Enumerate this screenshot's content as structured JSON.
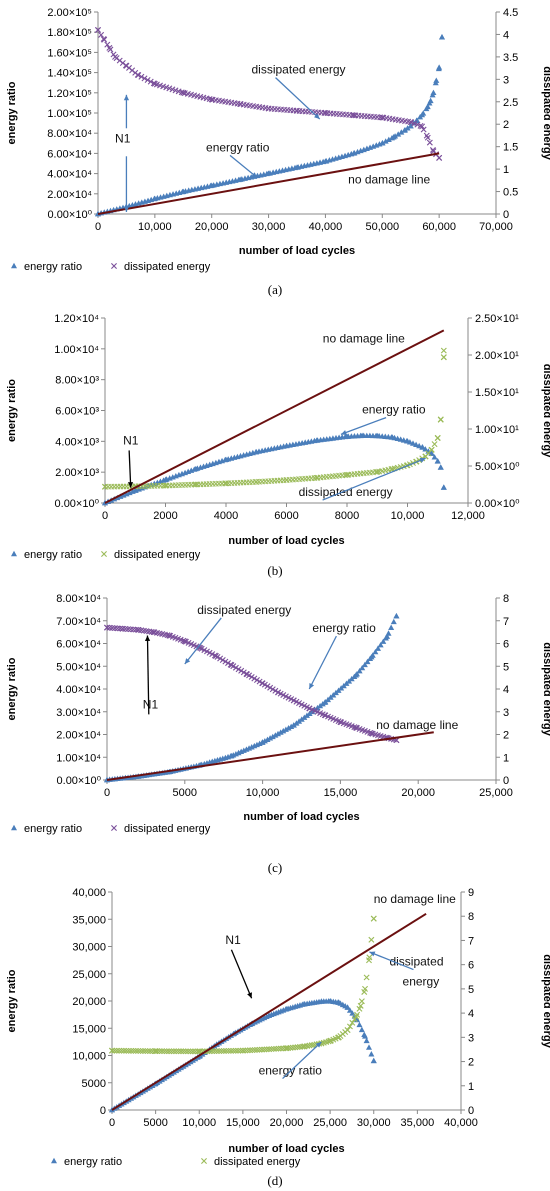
{
  "chart_data": [
    {
      "id": "a",
      "caption": "(a)",
      "type": "scatter",
      "xlabel": "number of load cycles",
      "ylabel": "energy ratio",
      "y2label": "dissipated energy",
      "xlim": [
        0,
        70000
      ],
      "ylim": [
        0,
        200000
      ],
      "y2lim": [
        0,
        4.5
      ],
      "xticks": [
        0,
        10000,
        20000,
        30000,
        40000,
        50000,
        60000,
        70000
      ],
      "xtick_labels": [
        "0",
        "10,000",
        "20,000",
        "30,000",
        "40,000",
        "50,000",
        "60,000",
        "70,000"
      ],
      "yticks": [
        0,
        20000,
        40000,
        60000,
        80000,
        100000,
        120000,
        140000,
        160000,
        180000,
        200000
      ],
      "ytick_labels": [
        "0.00×10⁰",
        "2.00×10⁴",
        "4.00×10⁴",
        "6.00×10⁴",
        "8.00×10⁴",
        "1.00×10⁵",
        "1.20×10⁵",
        "1.40×10⁵",
        "1.60×10⁵",
        "1.80×10⁵",
        "2.00×10⁵"
      ],
      "y2ticks": [
        0,
        0.5,
        1,
        1.5,
        2,
        2.5,
        3,
        3.5,
        4,
        4.5
      ],
      "y2tick_labels": [
        "0",
        "0.5",
        "1",
        "1.5",
        "2",
        "2.5",
        "3",
        "3.5",
        "4",
        "4.5"
      ],
      "series": [
        {
          "name": "energy ratio",
          "marker": "triangle",
          "color": "#4a7ebb",
          "axis": "y",
          "x": [
            0,
            5000,
            10000,
            15000,
            20000,
            25000,
            30000,
            35000,
            40000,
            45000,
            50000,
            52000,
            54000,
            55000,
            56000,
            57000,
            58000,
            58500,
            59000,
            59500,
            60000,
            60500
          ],
          "y": [
            0,
            7000,
            15000,
            22000,
            28000,
            34000,
            40000,
            46000,
            52000,
            60000,
            70000,
            76000,
            83000,
            87000,
            92000,
            98000,
            106000,
            112000,
            120000,
            132000,
            145000,
            175000
          ]
        },
        {
          "name": "dissipated energy",
          "marker": "x",
          "color": "#7a4f9a",
          "axis": "y2",
          "x": [
            0,
            1000,
            2000,
            3000,
            5000,
            7000,
            10000,
            15000,
            20000,
            25000,
            30000,
            35000,
            40000,
            45000,
            50000,
            55000,
            57000,
            58000,
            59000,
            60000
          ],
          "y": [
            4.1,
            3.9,
            3.7,
            3.5,
            3.3,
            3.1,
            2.9,
            2.7,
            2.55,
            2.45,
            2.35,
            2.3,
            2.25,
            2.2,
            2.15,
            2.05,
            1.95,
            1.7,
            1.4,
            1.25
          ]
        },
        {
          "name": "no damage line",
          "marker": "line",
          "color": "#6b1010",
          "axis": "y",
          "x": [
            0,
            60000
          ],
          "y": [
            0,
            60000
          ]
        }
      ],
      "annotations": [
        {
          "text": "dissipated energy",
          "x": 27000,
          "y": 139000,
          "arrow_to": [
            39000,
            94000
          ]
        },
        {
          "text": "energy ratio",
          "x": 19000,
          "y": 62000,
          "arrow_to": [
            28000,
            36000
          ]
        },
        {
          "text": "no damage line",
          "x": 44000,
          "y": 30000
        },
        {
          "text": "N1",
          "x": 3000,
          "y": 71000,
          "double_arrow": [
            5000,
            2000,
            5000,
            118000
          ]
        }
      ]
    },
    {
      "id": "b",
      "caption": "(b)",
      "type": "scatter",
      "xlabel": "number of load cycles",
      "ylabel": "energy ratio",
      "y2label": "dissipated energy",
      "xlim": [
        0,
        12000
      ],
      "ylim": [
        0,
        12000
      ],
      "y2lim": [
        0,
        25
      ],
      "xticks": [
        0,
        2000,
        4000,
        6000,
        8000,
        10000,
        12000
      ],
      "xtick_labels": [
        "0",
        "2000",
        "4000",
        "6000",
        "8000",
        "10,000",
        "12,000"
      ],
      "yticks": [
        0,
        2000,
        4000,
        6000,
        8000,
        10000,
        12000
      ],
      "ytick_labels": [
        "0.00×10⁰",
        "2.00×10³",
        "4.00×10³",
        "6.00×10³",
        "8.00×10³",
        "1.00×10⁴",
        "1.20×10⁴"
      ],
      "y2ticks": [
        0,
        5,
        10,
        15,
        20,
        25
      ],
      "y2tick_labels": [
        "0.00×10⁰",
        "5.00×10⁰",
        "1.00×10¹",
        "1.50×10¹",
        "2.00×10¹",
        "2.50×10¹"
      ],
      "series": [
        {
          "name": "energy ratio",
          "marker": "triangle",
          "color": "#4a7ebb",
          "axis": "y",
          "x": [
            0,
            1000,
            2000,
            3000,
            4000,
            5000,
            6000,
            7000,
            8000,
            8500,
            9000,
            9500,
            10000,
            10500,
            10800,
            11000,
            11100,
            11200
          ],
          "y": [
            0,
            800,
            1500,
            2200,
            2800,
            3300,
            3700,
            4050,
            4300,
            4360,
            4350,
            4250,
            4000,
            3600,
            3200,
            2700,
            2300,
            1000
          ]
        },
        {
          "name": "dissipated energy",
          "marker": "x",
          "color": "#9bbb59",
          "axis": "y2",
          "x": [
            0,
            1000,
            2000,
            3000,
            4000,
            5000,
            6000,
            7000,
            8000,
            9000,
            9500,
            10000,
            10300,
            10600,
            10800,
            11000,
            11100,
            11200,
            11200
          ],
          "y": [
            2.2,
            2.25,
            2.35,
            2.5,
            2.65,
            2.85,
            3.1,
            3.4,
            3.8,
            4.2,
            4.6,
            5.1,
            5.6,
            6.3,
            7.2,
            8.8,
            11.3,
            19.7,
            20.6
          ]
        },
        {
          "name": "no damage line",
          "marker": "line",
          "color": "#6b1010",
          "axis": "y",
          "x": [
            0,
            11200
          ],
          "y": [
            0,
            11200
          ]
        }
      ],
      "annotations": [
        {
          "text": "no damage line",
          "x": 7200,
          "y": 10400
        },
        {
          "text": "energy ratio",
          "x": 8500,
          "y": 5800,
          "arrow_to": [
            7800,
            4450
          ]
        },
        {
          "text": "dissipated energy",
          "x": 6400,
          "y": 450,
          "arrow_to": [
            10600,
            2900
          ]
        },
        {
          "text": "N1",
          "x": 600,
          "y": 3800,
          "arrow_to": [
            850,
            1000
          ]
        }
      ]
    },
    {
      "id": "c",
      "caption": "(c)",
      "type": "scatter",
      "xlabel": "number of load cycles",
      "ylabel": "energy ratio",
      "y2label": "dissipated energy",
      "xlim": [
        0,
        25000
      ],
      "ylim": [
        0,
        80000
      ],
      "y2lim": [
        0,
        8
      ],
      "xticks": [
        0,
        5000,
        10000,
        15000,
        20000,
        25000
      ],
      "xtick_labels": [
        "0",
        "5000",
        "10,000",
        "15,000",
        "20,000",
        "25,000"
      ],
      "yticks": [
        0,
        10000,
        20000,
        30000,
        40000,
        50000,
        60000,
        70000,
        80000
      ],
      "ytick_labels": [
        "0.00×10⁰",
        "1.00×10⁴",
        "2.00×10⁴",
        "3.00×10⁴",
        "4.00×10⁴",
        "5.00×10⁴",
        "6.00×10⁴",
        "7.00×10⁴",
        "8.00×10⁴"
      ],
      "y2ticks": [
        0,
        1,
        2,
        3,
        4,
        5,
        6,
        7,
        8
      ],
      "y2tick_labels": [
        "0",
        "1",
        "2",
        "3",
        "4",
        "5",
        "6",
        "7",
        "8"
      ],
      "series": [
        {
          "name": "energy ratio",
          "marker": "triangle",
          "color": "#4a7ebb",
          "axis": "y",
          "x": [
            0,
            2000,
            4000,
            6000,
            8000,
            10000,
            12000,
            14000,
            16000,
            17000,
            18000,
            18600
          ],
          "y": [
            0,
            1500,
            3500,
            6500,
            10500,
            16500,
            24000,
            34000,
            46000,
            54000,
            63000,
            72000
          ]
        },
        {
          "name": "dissipated energy",
          "marker": "x",
          "color": "#7a4f9a",
          "axis": "y2",
          "x": [
            0,
            1000,
            2000,
            3000,
            4000,
            5000,
            6000,
            7000,
            8000,
            9000,
            10000,
            11000,
            12000,
            13000,
            14000,
            15000,
            16000,
            17000,
            18000,
            18600
          ],
          "y": [
            6.7,
            6.65,
            6.6,
            6.5,
            6.35,
            6.1,
            5.8,
            5.45,
            5.05,
            4.65,
            4.25,
            3.85,
            3.5,
            3.15,
            2.85,
            2.55,
            2.3,
            2.05,
            1.85,
            1.75
          ]
        },
        {
          "name": "no damage line",
          "marker": "line",
          "color": "#6b1010",
          "axis": "y",
          "x": [
            0,
            21000
          ],
          "y": [
            0,
            21000
          ]
        }
      ],
      "annotations": [
        {
          "text": "dissipated energy",
          "x": 5800,
          "y": 73000,
          "arrow_to": [
            5000,
            51000
          ]
        },
        {
          "text": "energy ratio",
          "x": 13200,
          "y": 65000,
          "arrow_to": [
            13000,
            40000
          ]
        },
        {
          "text": "no damage line",
          "x": 17300,
          "y": 22500
        },
        {
          "text": "N1",
          "x": 2300,
          "y": 31500,
          "arrow_to": [
            2600,
            63500
          ]
        }
      ]
    },
    {
      "id": "d",
      "caption": "(d)",
      "type": "scatter",
      "xlabel": "number of load cycles",
      "ylabel": "energy ratio",
      "y2label": "dissipated energy",
      "xlim": [
        0,
        40000
      ],
      "ylim": [
        0,
        40000
      ],
      "y2lim": [
        0,
        9
      ],
      "xticks": [
        0,
        5000,
        10000,
        15000,
        20000,
        25000,
        30000,
        35000,
        40000
      ],
      "xtick_labels": [
        "0",
        "5000",
        "10,000",
        "15,000",
        "20,000",
        "25,000",
        "30,000",
        "35,000",
        "40,000"
      ],
      "yticks": [
        0,
        5000,
        10000,
        15000,
        20000,
        25000,
        30000,
        35000,
        40000
      ],
      "ytick_labels": [
        "0",
        "5000",
        "10,000",
        "15,000",
        "20,000",
        "25,000",
        "30,000",
        "35,000",
        "40,000"
      ],
      "y2ticks": [
        0,
        1,
        2,
        3,
        4,
        5,
        6,
        7,
        8,
        9
      ],
      "y2tick_labels": [
        "0",
        "1",
        "2",
        "3",
        "4",
        "5",
        "6",
        "7",
        "8",
        "9"
      ],
      "series": [
        {
          "name": "energy ratio",
          "marker": "triangle",
          "color": "#4a7ebb",
          "axis": "y",
          "x": [
            0,
            5000,
            10000,
            12000,
            14000,
            16000,
            18000,
            20000,
            22000,
            24000,
            25000,
            26000,
            27000,
            28000,
            29000,
            30000
          ],
          "y": [
            0,
            4800,
            9800,
            12000,
            14000,
            15800,
            17300,
            18500,
            19400,
            19900,
            19950,
            19700,
            18800,
            16800,
            13500,
            9000
          ]
        },
        {
          "name": "dissipated energy",
          "marker": "x",
          "color": "#9bbb59",
          "axis": "y2",
          "x": [
            0,
            5000,
            10000,
            15000,
            20000,
            22000,
            24000,
            25000,
            26000,
            27000,
            28000,
            28500,
            29000,
            29500,
            30000
          ],
          "y": [
            2.45,
            2.43,
            2.42,
            2.45,
            2.55,
            2.62,
            2.75,
            2.85,
            3.0,
            3.3,
            3.85,
            4.3,
            5.0,
            6.3,
            7.9
          ]
        },
        {
          "name": "no damage line",
          "marker": "line",
          "color": "#6b1010",
          "axis": "y",
          "x": [
            0,
            36000
          ],
          "y": [
            0,
            36000
          ]
        }
      ],
      "annotations": [
        {
          "text": "no damage line",
          "x": 30000,
          "y": 38000
        },
        {
          "text": "N1",
          "x": 13000,
          "y": 30500,
          "arrow_to": [
            16000,
            20500
          ]
        },
        {
          "text": "dissipated",
          "x": 31800,
          "y": 26500,
          "arrow_to": [
            29500,
            29000
          ]
        },
        {
          "text": "energy",
          "x": 33300,
          "y": 22800
        },
        {
          "text": "energy ratio",
          "x": 16800,
          "y": 6500,
          "arrow_to": [
            24000,
            12500
          ]
        }
      ]
    }
  ]
}
